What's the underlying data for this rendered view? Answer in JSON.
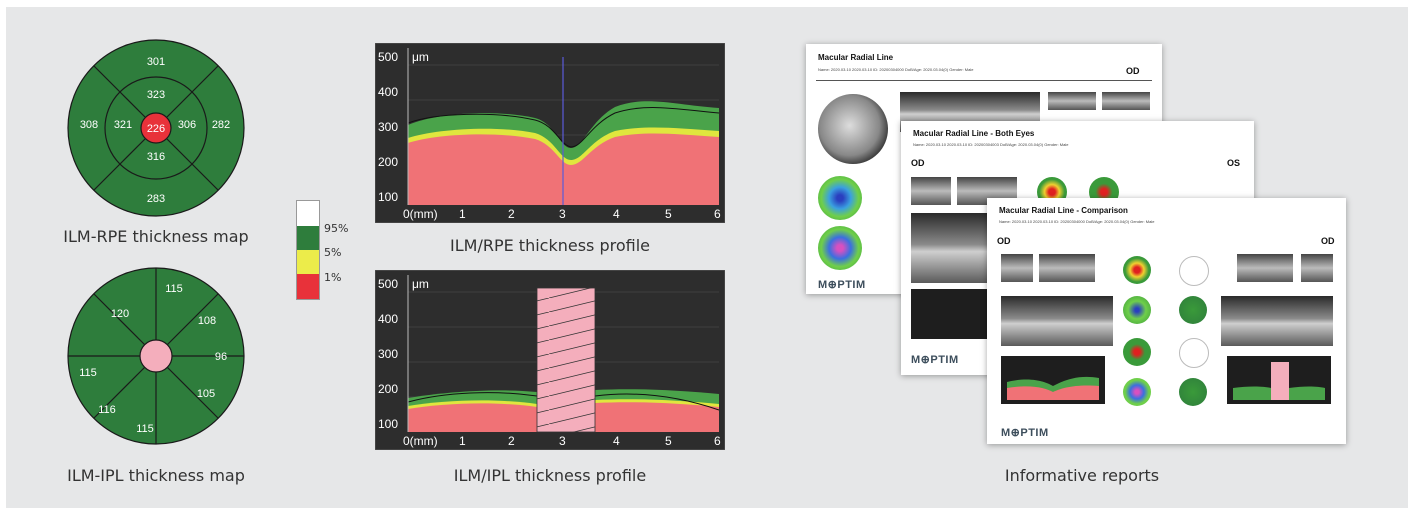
{
  "thickness_maps": {
    "ilm_rpe": {
      "caption": "ILM-RPE thickness map",
      "outer": {
        "top": "301",
        "left": "308",
        "right": "282",
        "bottom": "283"
      },
      "inner": {
        "top": "323",
        "left": "321",
        "right": "306",
        "bottom": "316"
      },
      "center": "226"
    },
    "ilm_ipl": {
      "caption": "ILM-IPL thickness map",
      "top_left": "120",
      "top": "115",
      "top_right": "108",
      "left": "115",
      "right": "96",
      "bottom_left": "116",
      "bottom": "115",
      "bottom_right": "105"
    }
  },
  "legend": {
    "labels": [
      "95%",
      "5%",
      "1%"
    ],
    "colors": {
      "white": "#ffffff",
      "green": "#2e7d3c",
      "yellow": "#ecec4a",
      "red": "#e8323a"
    }
  },
  "profiles": {
    "rpe": {
      "caption": "ILM/RPE thickness profile"
    },
    "ipl": {
      "caption": "ILM/IPL thickness profile"
    },
    "y_ticks": [
      "500",
      "400",
      "300",
      "200",
      "100"
    ],
    "unit": "μm",
    "x_ticks": [
      "0(mm)",
      "1",
      "2",
      "3",
      "4",
      "5",
      "6"
    ]
  },
  "reports": {
    "caption": "Informative reports",
    "brand": "M⊕PTIM",
    "sheet1": {
      "title": "Macular Radial Line",
      "eye": "OD",
      "meta": "Name: 2020.03.10 2020.03.10    ID: 20200304000    DoB/Age: 2020.03.04(0)    Gender: Male"
    },
    "sheet2": {
      "title": "Macular Radial Line - Both Eyes",
      "eye_left": "OD",
      "eye_right": "OS",
      "meta": "Name: 2020.03.10 2020.03.10    ID: 20200304003    DoB/Age: 2020.03.04(0)    Gender: Male"
    },
    "sheet3": {
      "title": "Macular Radial Line - Comparison",
      "eye_left": "OD",
      "eye_right": "OD",
      "meta": "Name: 2020.03.10 2020.03.10    ID: 20200304000    DoB/Age: 2020.03.04(0)    Gender: Male"
    }
  }
}
